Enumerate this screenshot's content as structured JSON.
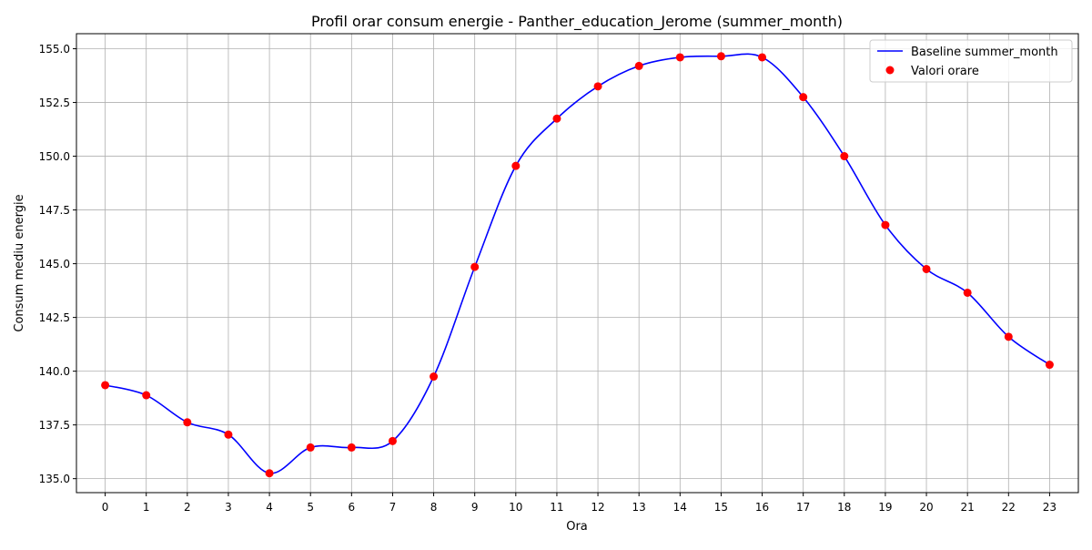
{
  "chart_data": {
    "type": "line",
    "title": "Profil orar consum energie - Panther_education_Jerome (summer_month)",
    "xlabel": "Ora",
    "ylabel": "Consum mediu energie",
    "x": [
      0,
      1,
      2,
      3,
      4,
      5,
      6,
      7,
      8,
      9,
      10,
      11,
      12,
      13,
      14,
      15,
      16,
      17,
      18,
      19,
      20,
      21,
      22,
      23
    ],
    "x_ticks": [
      "0",
      "1",
      "2",
      "3",
      "4",
      "5",
      "6",
      "7",
      "8",
      "9",
      "10",
      "11",
      "12",
      "13",
      "14",
      "15",
      "16",
      "17",
      "18",
      "19",
      "20",
      "21",
      "22",
      "23"
    ],
    "y_ticks": [
      "135.0",
      "137.5",
      "140.0",
      "142.5",
      "145.0",
      "147.5",
      "150.0",
      "152.5",
      "155.0"
    ],
    "y_tick_values": [
      135.0,
      137.5,
      140.0,
      142.5,
      145.0,
      147.5,
      150.0,
      152.5,
      155.0
    ],
    "xlim": [
      -0.7,
      23.7
    ],
    "ylim": [
      134.35,
      155.7
    ],
    "grid": true,
    "legend_position": "top-right",
    "series": [
      {
        "name": "Baseline summer_month",
        "kind": "smooth-line",
        "color": "#0000ff",
        "values": [
          139.35,
          138.88,
          137.62,
          137.05,
          135.25,
          136.45,
          136.45,
          136.75,
          139.75,
          144.85,
          149.55,
          151.75,
          153.25,
          154.2,
          154.6,
          154.65,
          154.6,
          152.75,
          150.0,
          146.8,
          144.75,
          143.65,
          141.6,
          140.3
        ]
      },
      {
        "name": "Valori orare",
        "kind": "scatter",
        "color": "#ff0000",
        "values": [
          139.35,
          138.88,
          137.62,
          137.05,
          135.25,
          136.45,
          136.45,
          136.75,
          139.75,
          144.85,
          149.55,
          151.75,
          153.25,
          154.2,
          154.6,
          154.65,
          154.6,
          152.75,
          150.0,
          146.8,
          144.75,
          143.65,
          141.6,
          140.3
        ]
      }
    ]
  }
}
